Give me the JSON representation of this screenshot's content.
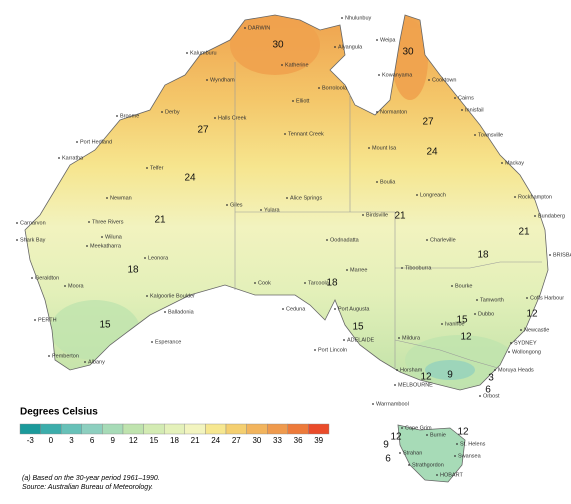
{
  "legend": {
    "title": "Degrees Celsius",
    "ticks": [
      -3,
      0,
      3,
      6,
      9,
      12,
      15,
      18,
      21,
      24,
      27,
      30,
      33,
      36,
      39
    ],
    "colors": [
      "#1b9a9b",
      "#3cadab",
      "#67c1b8",
      "#8dcfbf",
      "#a7dbb7",
      "#bfe3ae",
      "#d3ebb3",
      "#e4f1ba",
      "#f2f4bf",
      "#f6e790",
      "#f4cf70",
      "#f2b45d",
      "#ef9a4d",
      "#ed7a3a",
      "#ea4b2a"
    ]
  },
  "contour_labels": [
    30,
    30,
    27,
    27,
    24,
    24,
    21,
    21,
    21,
    18,
    18,
    18,
    15,
    15,
    15,
    12,
    12,
    12,
    9,
    3,
    6,
    12,
    12,
    9,
    6
  ],
  "places": [
    "DARWIN",
    "Nhulunbuy",
    "Kalumburu",
    "Alyangula",
    "Weipa",
    "Wyndham",
    "Katherine",
    "Borroloola",
    "Kowanyama",
    "Cooktown",
    "Derby",
    "Broome",
    "Halls Creek",
    "Elliott",
    "Normanton",
    "Cairns",
    "Innisfail",
    "Townsville",
    "Tennant Creek",
    "Mount Isa",
    "Port Hedland",
    "Karratha",
    "Telfer",
    "Giles",
    "Alice Springs",
    "Yulara",
    "Boulia",
    "Longreach",
    "Mackay",
    "Rockhampton",
    "Bundaberg",
    "Newman",
    "Carnarvon",
    "Shark Bay",
    "Three Rivers",
    "Wiluna",
    "Meekatharra",
    "Oodnadatta",
    "Birdsville",
    "Charleville",
    "Geraldton",
    "Leonora",
    "Moora",
    "Kalgoorlie Boulder",
    "Balladonia",
    "Cook",
    "Tarcoola",
    "Marree",
    "Tibooburra",
    "Bourke",
    "BRISBANE",
    "Coffs Harbour",
    "PERTH",
    "Esperance",
    "Pemberton",
    "Albany",
    "Ceduna",
    "Port Augusta",
    "Ivanhoe",
    "Dubbo",
    "Tamworth",
    "Newcastle",
    "SYDNEY",
    "Wollongong",
    "ADELAIDE",
    "Port Lincoln",
    "Mildura",
    "Horsham",
    "MELBOURNE",
    "Warrnambool",
    "Orbost",
    "Moruya Heads",
    "Cape Grim",
    "Burnie",
    "St. Helens",
    "Strahan",
    "Swansea",
    "Strathgordon",
    "HOBART"
  ],
  "notes": [
    "(a) Based on the 30-year period 1961–1990.",
    "Source: Australian Bureau of Meteorology."
  ]
}
